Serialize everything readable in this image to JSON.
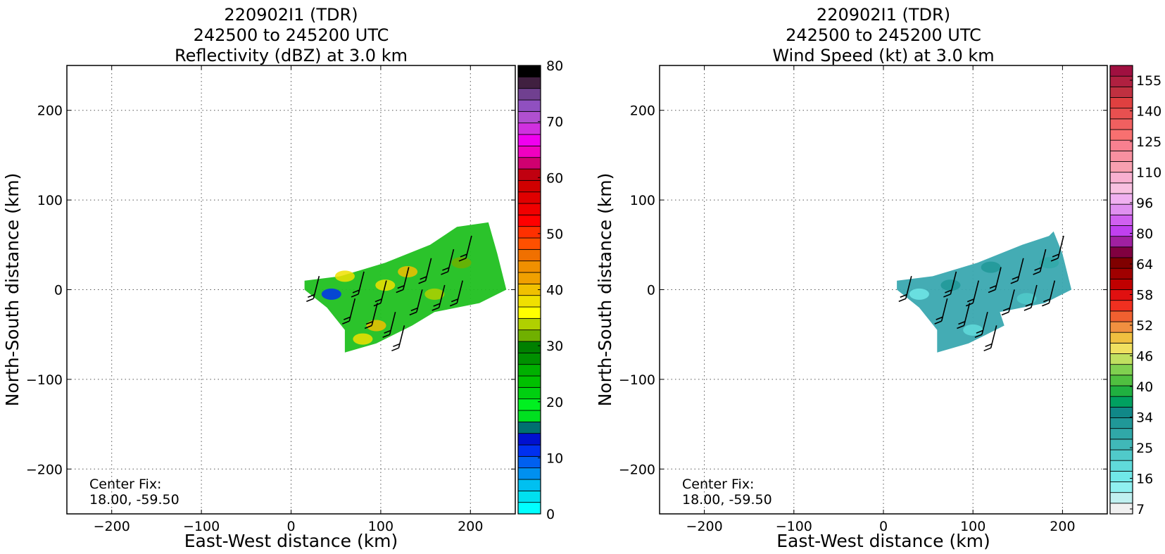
{
  "panels": [
    {
      "title_lines": [
        "220902I1 (TDR)",
        "242500 to 245200 UTC",
        "Reflectivity (dBZ) at 3.0 km"
      ],
      "xlabel": "East-West distance (km)",
      "ylabel": "North-South distance (km)",
      "center_fix_label": "Center Fix:",
      "center_fix_value": "18.00, -59.50",
      "colorbar_tick_labels": [
        "0",
        "10",
        "20",
        "30",
        "40",
        "50",
        "60",
        "70",
        "80"
      ],
      "colorbar_colors": [
        "#00ffff",
        "#00e0f0",
        "#00c0f0",
        "#0090f0",
        "#0060f0",
        "#0030f0",
        "#0010d0",
        "#007070",
        "#00e020",
        "#00f020",
        "#00d010",
        "#00c000",
        "#00b000",
        "#009000",
        "#008000",
        "#70b000",
        "#b0d000",
        "#ffff00",
        "#f0e000",
        "#f0c000",
        "#f0a000",
        "#f09000",
        "#f07000",
        "#ff5000",
        "#ff3000",
        "#ff0000",
        "#f00000",
        "#e00000",
        "#d00000",
        "#c00010",
        "#d00070",
        "#f000c0",
        "#f000f0",
        "#d030e0",
        "#b050d0",
        "#9050c0",
        "#704090",
        "#402040",
        "#000000"
      ],
      "field_color": "#20c020"
    },
    {
      "title_lines": [
        "220902I1 (TDR)",
        "242500 to 245200 UTC",
        "Wind Speed (kt) at 3.0 km"
      ],
      "xlabel": "East-West distance (km)",
      "ylabel": "North-South distance (km)",
      "center_fix_label": "Center Fix:",
      "center_fix_value": "18.00, -59.50",
      "colorbar_tick_labels": [
        "7",
        "16",
        "25",
        "34",
        "40",
        "46",
        "52",
        "58",
        "64",
        "80",
        "96",
        "110",
        "125",
        "140",
        "155"
      ],
      "colorbar_colors": [
        "#f0f0f0",
        "#c0f0f0",
        "#90f0f0",
        "#70e8e8",
        "#60dada",
        "#50caca",
        "#40b8b8",
        "#30a8a8",
        "#209898",
        "#108888",
        "#00a060",
        "#20b040",
        "#50c040",
        "#80d050",
        "#c0e060",
        "#f0e060",
        "#f0c040",
        "#f09040",
        "#f06030",
        "#f03020",
        "#e01010",
        "#c00000",
        "#a00000",
        "#800000",
        "#800040",
        "#a020a0",
        "#c040f0",
        "#d060f0",
        "#e090f0",
        "#f0b0f0",
        "#f8c0e0",
        "#f8b0d0",
        "#f8a0b0",
        "#f890a0",
        "#f88090",
        "#f87070",
        "#f06060",
        "#e85050",
        "#e04040",
        "#c03040",
        "#b02040",
        "#a01040"
      ],
      "field_color": "#3aa8b0"
    }
  ],
  "chart_data": [
    {
      "type": "heatmap",
      "title": "220902I1 (TDR) 242500 to 245200 UTC Reflectivity (dBZ) at 3.0 km",
      "xlabel": "East-West distance (km)",
      "ylabel": "North-South distance (km)",
      "xlim": [
        -250,
        250
      ],
      "ylim": [
        -250,
        250
      ],
      "xticks": [
        -200,
        -100,
        0,
        100,
        200
      ],
      "yticks": [
        -200,
        -100,
        0,
        100,
        200
      ],
      "grid": true,
      "colorbar": {
        "label": "dBZ",
        "min": 0,
        "max": 80,
        "ticks": [
          0,
          10,
          20,
          30,
          40,
          50,
          60,
          70,
          80
        ]
      },
      "data_extent": {
        "x": [
          15,
          240
        ],
        "y": [
          -70,
          75
        ]
      },
      "dominant_value_range": [
        20,
        40
      ],
      "center_fix": [
        18.0,
        -59.5
      ]
    },
    {
      "type": "heatmap",
      "title": "220902I1 (TDR) 242500 to 245200 UTC Wind Speed (kt) at 3.0 km",
      "xlabel": "East-West distance (km)",
      "ylabel": "North-South distance (km)",
      "xlim": [
        -250,
        250
      ],
      "ylim": [
        -250,
        250
      ],
      "xticks": [
        -200,
        -100,
        0,
        100,
        200
      ],
      "yticks": [
        -200,
        -100,
        0,
        100,
        200
      ],
      "grid": true,
      "colorbar": {
        "label": "kt",
        "ticks": [
          7,
          16,
          25,
          34,
          40,
          46,
          52,
          58,
          64,
          80,
          96,
          110,
          125,
          140,
          155
        ]
      },
      "data_extent": {
        "x": [
          15,
          210
        ],
        "y": [
          -70,
          65
        ]
      },
      "dominant_value_range": [
        16,
        34
      ],
      "center_fix": [
        18.0,
        -59.5
      ]
    }
  ]
}
